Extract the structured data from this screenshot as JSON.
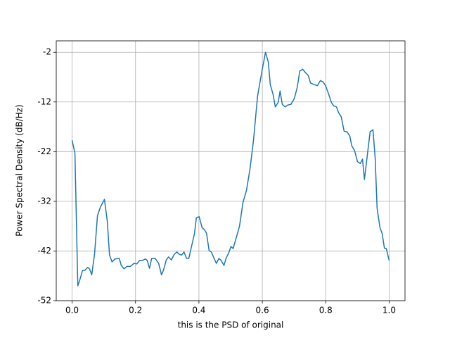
{
  "chart_data": {
    "type": "line",
    "xlabel": "this is the PSD of original",
    "ylabel": "Power Spectral Density (dB/Hz)",
    "xlim": [
      -0.05,
      1.05
    ],
    "ylim": [
      -52,
      0.3
    ],
    "xticks": [
      {
        "value": 0,
        "label": "0.0"
      },
      0.2,
      0.4,
      0.6,
      0.8,
      {
        "value": 1,
        "label": "1.0"
      }
    ],
    "yticks": [
      -2,
      -12,
      -22,
      -32,
      -42,
      -52
    ],
    "grid": true,
    "series": [
      {
        "color": "#1f77b4",
        "x": [
          0,
          0.0089,
          0.018,
          0.024,
          0.033,
          0.04,
          0.049,
          0.055,
          0.062,
          0.071,
          0.08,
          0.089,
          0.102,
          0.111,
          0.118,
          0.126,
          0.135,
          0.149,
          0.155,
          0.164,
          0.173,
          0.184,
          0.195,
          0.204,
          0.213,
          0.222,
          0.231,
          0.237,
          0.244,
          0.251,
          0.262,
          0.273,
          0.282,
          0.288,
          0.297,
          0.304,
          0.313,
          0.322,
          0.33,
          0.339,
          0.346,
          0.353,
          0.361,
          0.368,
          0.377,
          0.386,
          0.392,
          0.401,
          0.41,
          0.417,
          0.424,
          0.432,
          0.439,
          0.448,
          0.455,
          0.463,
          0.47,
          0.479,
          0.486,
          0.494,
          0.501,
          0.508,
          0.517,
          0.528,
          0.539,
          0.55,
          0.561,
          0.572,
          0.585,
          0.599,
          0.61,
          0.619,
          0.625,
          0.634,
          0.641,
          0.65,
          0.656,
          0.663,
          0.672,
          0.681,
          0.69,
          0.701,
          0.71,
          0.718,
          0.727,
          0.736,
          0.745,
          0.752,
          0.763,
          0.774,
          0.783,
          0.792,
          0.8,
          0.809,
          0.818,
          0.825,
          0.834,
          0.84,
          0.849,
          0.858,
          0.867,
          0.876,
          0.882,
          0.891,
          0.9,
          0.909,
          0.916,
          0.922,
          0.931,
          0.94,
          0.949,
          0.956,
          0.962,
          0.971,
          0.978,
          0.985,
          0.991,
          1.0
        ],
        "values": [
          -19.7,
          -22.3,
          -49.0,
          -47.9,
          -45.9,
          -45.9,
          -45.3,
          -45.6,
          -46.8,
          -42.5,
          -34.9,
          -33.2,
          -31.6,
          -36.0,
          -42.8,
          -44.2,
          -43.6,
          -43.5,
          -44.9,
          -45.6,
          -45.1,
          -45.1,
          -44.5,
          -44.6,
          -43.9,
          -43.9,
          -43.6,
          -43.9,
          -45.5,
          -43.5,
          -43.5,
          -44.5,
          -46.8,
          -45.9,
          -43.8,
          -43.2,
          -43.8,
          -42.7,
          -42.2,
          -42.7,
          -42.8,
          -42.2,
          -43.5,
          -43.5,
          -41.0,
          -38.5,
          -35.3,
          -35.1,
          -37.3,
          -37.7,
          -38.4,
          -41.9,
          -42.2,
          -43.5,
          -44.5,
          -43.5,
          -43.9,
          -44.9,
          -43.4,
          -42.4,
          -41.1,
          -41.5,
          -39.5,
          -37.0,
          -32.2,
          -29.8,
          -25.5,
          -19.8,
          -10.8,
          -5.7,
          -2.0,
          -4.0,
          -8.5,
          -10.5,
          -13.0,
          -12.1,
          -9.8,
          -12.5,
          -13.0,
          -12.6,
          -12.5,
          -11.3,
          -9.1,
          -5.8,
          -5.4,
          -6.1,
          -6.7,
          -8.2,
          -8.5,
          -8.7,
          -7.7,
          -8.0,
          -8.8,
          -10.4,
          -12.1,
          -12.8,
          -13.0,
          -14.1,
          -15.0,
          -17.9,
          -18.0,
          -18.9,
          -20.8,
          -21.8,
          -24.0,
          -24.4,
          -23.5,
          -27.6,
          -22.8,
          -18.0,
          -17.6,
          -23.4,
          -33.4,
          -37.3,
          -38.5,
          -41.4,
          -41.5,
          -43.9
        ]
      }
    ]
  }
}
